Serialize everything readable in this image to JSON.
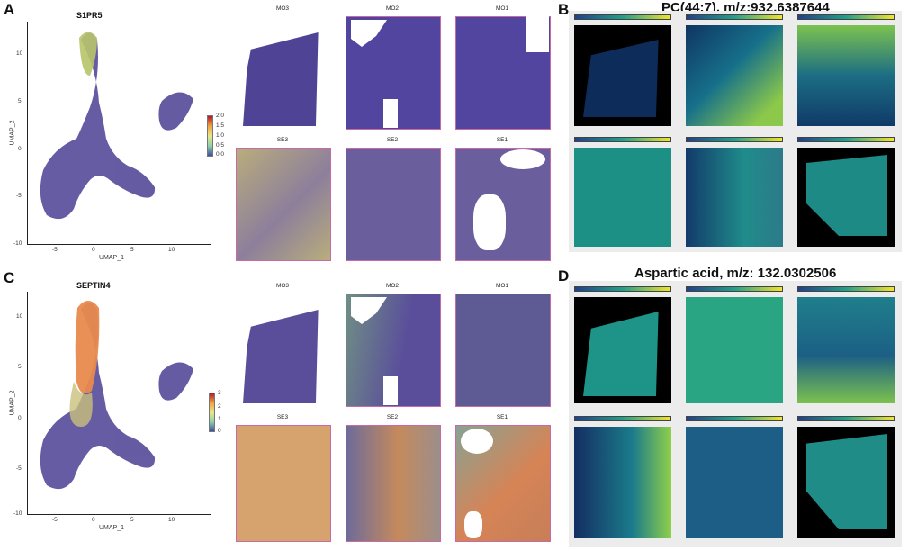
{
  "panels": {
    "A": {
      "letter": "A",
      "gene": "S1PR5",
      "xlabel": "UMAP_1",
      "ylabel": "UMAP_2",
      "yticks": [
        "10",
        "5",
        "0",
        "-5",
        "-10"
      ],
      "xticks": [
        "-5",
        "0",
        "5",
        "10"
      ],
      "legend_ticks": [
        "2.0",
        "1.5",
        "1.0",
        "0.5",
        "0.0"
      ],
      "tiles_top": [
        "MO3",
        "MO2",
        "MO1"
      ],
      "tiles_bottom": [
        "SE3",
        "SE2",
        "SE1"
      ]
    },
    "B": {
      "letter": "B",
      "title": "PC(44:7), m/z:932.6387644"
    },
    "C": {
      "letter": "C",
      "gene": "SEPTIN4",
      "xlabel": "UMAP_1",
      "ylabel": "UMAP_2",
      "yticks": [
        "10",
        "5",
        "0",
        "-5",
        "-10"
      ],
      "xticks": [
        "-5",
        "0",
        "5",
        "10"
      ],
      "legend_ticks": [
        "3",
        "2",
        "1",
        "0"
      ],
      "tiles_top": [
        "MO3",
        "MO2",
        "MO1"
      ],
      "tiles_bottom": [
        "SE3",
        "SE2",
        "SE1"
      ]
    },
    "D": {
      "letter": "D",
      "title": "Aspartic acid, m/z: 132.0302506"
    }
  },
  "colors": {
    "low": "#4b3f93",
    "spatial_mid": "#d8c98c",
    "spatial_high": "#d96a3c",
    "msi_low": "#21418a",
    "msi_mid": "#21a08a",
    "msi_high": "#f2e52a",
    "frame": "#c76aa6"
  }
}
